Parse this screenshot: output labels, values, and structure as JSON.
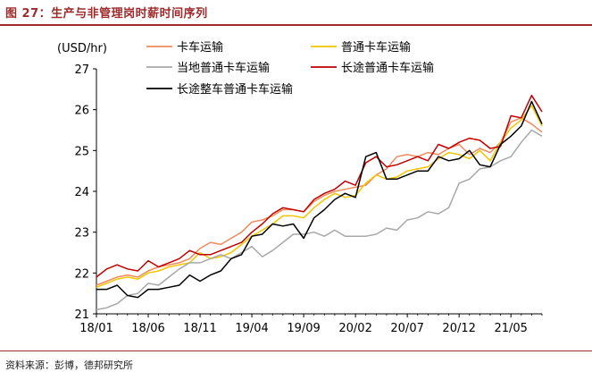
{
  "figure_title": "图 27：生产与非管理岗时薪时间序列",
  "source": "资料来源：彭博，德邦研究所",
  "chart_data": {
    "type": "line",
    "ylabel": "(USD/hr)",
    "ylim": [
      21,
      27
    ],
    "yticks": [
      21,
      22,
      23,
      24,
      25,
      26,
      27
    ],
    "x_tick_labels": [
      "18/01",
      "18/06",
      "18/11",
      "19/04",
      "19/09",
      "20/02",
      "20/07",
      "20/12",
      "21/05"
    ],
    "x": [
      "18/01",
      "18/02",
      "18/03",
      "18/04",
      "18/05",
      "18/06",
      "18/07",
      "18/08",
      "18/09",
      "18/10",
      "18/11",
      "18/12",
      "19/01",
      "19/02",
      "19/03",
      "19/04",
      "19/05",
      "19/06",
      "19/07",
      "19/08",
      "19/09",
      "19/10",
      "19/11",
      "19/12",
      "20/01",
      "20/02",
      "20/03",
      "20/04",
      "20/05",
      "20/06",
      "20/07",
      "20/08",
      "20/09",
      "20/10",
      "20/11",
      "20/12",
      "21/01",
      "21/02",
      "21/03",
      "21/04",
      "21/05",
      "21/06",
      "21/07",
      "21/08"
    ],
    "series": [
      {
        "name": "卡车运输",
        "color": "#f08a5d",
        "values": [
          21.7,
          21.8,
          21.9,
          21.95,
          21.9,
          22.05,
          22.15,
          22.2,
          22.25,
          22.35,
          22.6,
          22.75,
          22.7,
          22.85,
          23.0,
          23.25,
          23.3,
          23.4,
          23.55,
          23.55,
          23.5,
          23.75,
          23.9,
          24.0,
          24.05,
          24.1,
          24.15,
          24.4,
          24.55,
          24.85,
          24.9,
          24.85,
          24.95,
          24.9,
          25.05,
          25.15,
          24.9,
          25.05,
          24.95,
          25.2,
          25.7,
          25.8,
          25.65,
          25.45
        ]
      },
      {
        "name": "普通卡车运输",
        "color": "#f2c500",
        "values": [
          21.65,
          21.75,
          21.85,
          21.9,
          21.85,
          22.0,
          22.05,
          22.15,
          22.2,
          22.25,
          22.5,
          22.35,
          22.4,
          22.5,
          22.7,
          22.9,
          23.05,
          23.2,
          23.4,
          23.4,
          23.35,
          23.6,
          23.8,
          23.95,
          23.85,
          23.9,
          24.2,
          24.4,
          24.3,
          24.35,
          24.5,
          24.55,
          24.6,
          24.8,
          24.95,
          24.9,
          24.8,
          25.0,
          24.75,
          25.2,
          25.55,
          25.75,
          26.1,
          25.6
        ]
      },
      {
        "name": "当地普通卡车运输",
        "color": "#a8a8a8",
        "values": [
          21.1,
          21.15,
          21.25,
          21.45,
          21.5,
          21.75,
          21.7,
          21.9,
          22.1,
          22.25,
          22.25,
          22.35,
          22.45,
          22.35,
          22.5,
          22.65,
          22.4,
          22.55,
          22.75,
          22.95,
          22.95,
          23.0,
          22.9,
          23.05,
          22.9,
          22.9,
          22.9,
          22.95,
          23.1,
          23.05,
          23.3,
          23.35,
          23.5,
          23.45,
          23.6,
          24.2,
          24.3,
          24.55,
          24.6,
          24.75,
          24.85,
          25.2,
          25.5,
          25.35
        ]
      },
      {
        "name": "长途普通卡车运输",
        "color": "#c00000",
        "values": [
          21.9,
          22.1,
          22.2,
          22.1,
          22.05,
          22.3,
          22.15,
          22.25,
          22.35,
          22.55,
          22.45,
          22.45,
          22.55,
          22.65,
          22.75,
          23.0,
          23.2,
          23.45,
          23.6,
          23.55,
          23.5,
          23.8,
          23.95,
          24.05,
          24.25,
          24.15,
          24.7,
          24.85,
          24.6,
          24.65,
          24.75,
          24.85,
          24.75,
          25.15,
          25.05,
          25.2,
          25.3,
          25.25,
          25.05,
          25.1,
          25.85,
          25.8,
          26.35,
          25.95
        ]
      },
      {
        "name": "长途整车普通卡车运输",
        "color": "#000000",
        "values": [
          21.6,
          21.6,
          21.7,
          21.45,
          21.4,
          21.6,
          21.6,
          21.65,
          21.7,
          21.95,
          21.8,
          21.95,
          22.05,
          22.35,
          22.45,
          22.9,
          22.95,
          23.2,
          23.15,
          23.2,
          22.85,
          23.35,
          23.55,
          23.8,
          23.95,
          23.85,
          24.85,
          24.95,
          24.3,
          24.3,
          24.4,
          24.5,
          24.5,
          24.85,
          24.75,
          24.8,
          25.0,
          24.65,
          24.6,
          25.15,
          25.35,
          25.6,
          26.2,
          25.65
        ]
      }
    ]
  }
}
